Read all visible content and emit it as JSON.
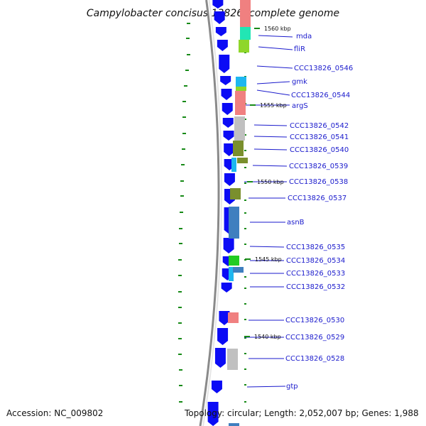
{
  "title": "Campylobacter concisus 13826, complete genome",
  "accession": "Accession: NC_009802",
  "summary": "Topology: circular; Length: 2,052,007 bp; Genes: 1,988",
  "colors": {
    "backbone": "#8a8a8a",
    "cds": "#0b0bf5",
    "label": "#1a1acc",
    "tick": "#178a17",
    "salmon": "#f08080",
    "cyan": "#22e6b4",
    "lime": "#8fd62a",
    "skyblue": "#1eb7f0",
    "gray": "#c0c0c0",
    "olive": "#7a8f2d",
    "steelblue": "#3f7fbf",
    "green": "#22cc22"
  },
  "scale_labels": [
    "1560 kbp",
    "1555 kbp",
    "1550 kbp",
    "1545 kbp",
    "1540 kbp"
  ],
  "gene_labels": [
    "mda",
    "fliR",
    "CCC13826_0546",
    "gmk",
    "CCC13826_0544",
    "argS",
    "CCC13826_0542",
    "CCC13826_0541",
    "CCC13826_0540",
    "CCC13826_0539",
    "CCC13826_0538",
    "CCC13826_0537",
    "asnB",
    "CCC13826_0535",
    "CCC13826_0534",
    "CCC13826_0533",
    "CCC13826_0532",
    "CCC13826_0530",
    "CCC13826_0529",
    "CCC13826_0528",
    "gtp"
  ]
}
